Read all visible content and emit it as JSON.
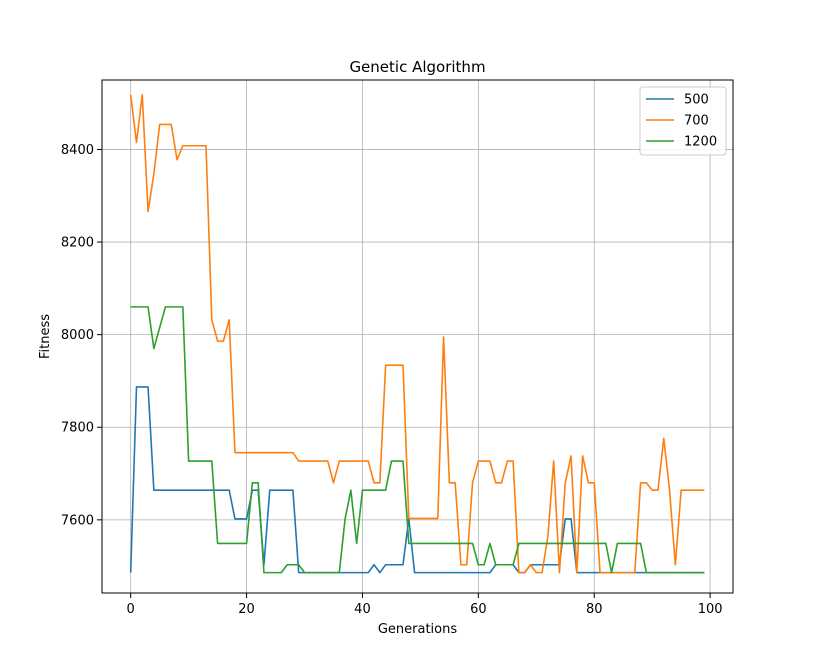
{
  "chart_data": {
    "type": "line",
    "title": "Genetic Algorithm",
    "xlabel": "Generations",
    "ylabel": "Fitness",
    "xlim": [
      -4.95,
      103.95
    ],
    "ylim": [
      7442,
      8550
    ],
    "xticks": [
      0,
      20,
      40,
      60,
      80,
      100
    ],
    "yticks": [
      7600,
      7800,
      8000,
      8200,
      8400
    ],
    "grid": true,
    "legend_position": "top-right",
    "x": [
      0,
      1,
      2,
      3,
      4,
      5,
      6,
      7,
      8,
      9,
      10,
      11,
      12,
      13,
      14,
      15,
      16,
      17,
      18,
      19,
      20,
      21,
      22,
      23,
      24,
      25,
      26,
      27,
      28,
      29,
      30,
      31,
      32,
      33,
      34,
      35,
      36,
      37,
      38,
      39,
      40,
      41,
      42,
      43,
      44,
      45,
      46,
      47,
      48,
      49,
      50,
      51,
      52,
      53,
      54,
      55,
      56,
      57,
      58,
      59,
      60,
      61,
      62,
      63,
      64,
      65,
      66,
      67,
      68,
      69,
      70,
      71,
      72,
      73,
      74,
      75,
      76,
      77,
      78,
      79,
      80,
      81,
      82,
      83,
      84,
      85,
      86,
      87,
      88,
      89,
      90,
      91,
      92,
      93,
      94,
      95,
      96,
      97,
      98,
      99
    ],
    "series": [
      {
        "name": "500",
        "color": "#1f77b4",
        "values": [
          7486,
          7887,
          7887,
          7887,
          7664,
          7664,
          7664,
          7664,
          7664,
          7664,
          7664,
          7664,
          7664,
          7664,
          7664,
          7664,
          7664,
          7664,
          7602,
          7602,
          7602,
          7664,
          7664,
          7503,
          7664,
          7664,
          7664,
          7664,
          7664,
          7486,
          7486,
          7486,
          7486,
          7486,
          7486,
          7486,
          7486,
          7486,
          7486,
          7486,
          7486,
          7486,
          7503,
          7486,
          7503,
          7503,
          7503,
          7503,
          7602,
          7486,
          7486,
          7486,
          7486,
          7486,
          7486,
          7486,
          7486,
          7486,
          7486,
          7486,
          7486,
          7486,
          7486,
          7503,
          7503,
          7503,
          7503,
          7486,
          7486,
          7503,
          7503,
          7503,
          7503,
          7503,
          7503,
          7602,
          7602,
          7486,
          7486,
          7486,
          7486,
          7486,
          7486,
          7486,
          7486,
          7486,
          7486,
          7486,
          7486,
          7486,
          7486,
          7486,
          7486,
          7486,
          7486,
          7486,
          7486,
          7486,
          7486,
          7486
        ]
      },
      {
        "name": "700",
        "color": "#ff7f0e",
        "values": [
          8518,
          8415,
          8518,
          8266,
          8347,
          8454,
          8454,
          8454,
          8378,
          8408,
          8408,
          8408,
          8408,
          8408,
          8032,
          7986,
          7986,
          8032,
          7745,
          7745,
          7745,
          7745,
          7745,
          7745,
          7745,
          7745,
          7745,
          7745,
          7745,
          7727,
          7727,
          7727,
          7727,
          7727,
          7727,
          7680,
          7727,
          7727,
          7727,
          7727,
          7727,
          7727,
          7680,
          7680,
          7934,
          7934,
          7934,
          7934,
          7603,
          7603,
          7603,
          7603,
          7603,
          7603,
          7995,
          7680,
          7680,
          7503,
          7503,
          7680,
          7727,
          7727,
          7727,
          7680,
          7680,
          7727,
          7727,
          7486,
          7486,
          7503,
          7486,
          7486,
          7564,
          7727,
          7486,
          7680,
          7738,
          7486,
          7738,
          7680,
          7680,
          7486,
          7486,
          7486,
          7486,
          7486,
          7486,
          7486,
          7680,
          7680,
          7664,
          7664,
          7776,
          7664,
          7503,
          7664,
          7664,
          7664,
          7664,
          7664
        ]
      },
      {
        "name": "1200",
        "color": "#2ca02c",
        "values": [
          8060,
          8060,
          8060,
          8060,
          7970,
          8015,
          8060,
          8060,
          8060,
          8060,
          7727,
          7727,
          7727,
          7727,
          7727,
          7549,
          7549,
          7549,
          7549,
          7549,
          7549,
          7680,
          7680,
          7486,
          7486,
          7486,
          7486,
          7503,
          7503,
          7503,
          7486,
          7486,
          7486,
          7486,
          7486,
          7486,
          7486,
          7602,
          7664,
          7549,
          7664,
          7664,
          7664,
          7664,
          7664,
          7727,
          7727,
          7727,
          7549,
          7549,
          7549,
          7549,
          7549,
          7549,
          7549,
          7549,
          7549,
          7549,
          7549,
          7549,
          7503,
          7503,
          7549,
          7503,
          7503,
          7503,
          7503,
          7549,
          7549,
          7549,
          7549,
          7549,
          7549,
          7549,
          7549,
          7549,
          7549,
          7549,
          7549,
          7549,
          7549,
          7549,
          7549,
          7486,
          7549,
          7549,
          7549,
          7549,
          7549,
          7486,
          7486,
          7486,
          7486,
          7486,
          7486,
          7486,
          7486,
          7486,
          7486,
          7486
        ]
      }
    ]
  }
}
